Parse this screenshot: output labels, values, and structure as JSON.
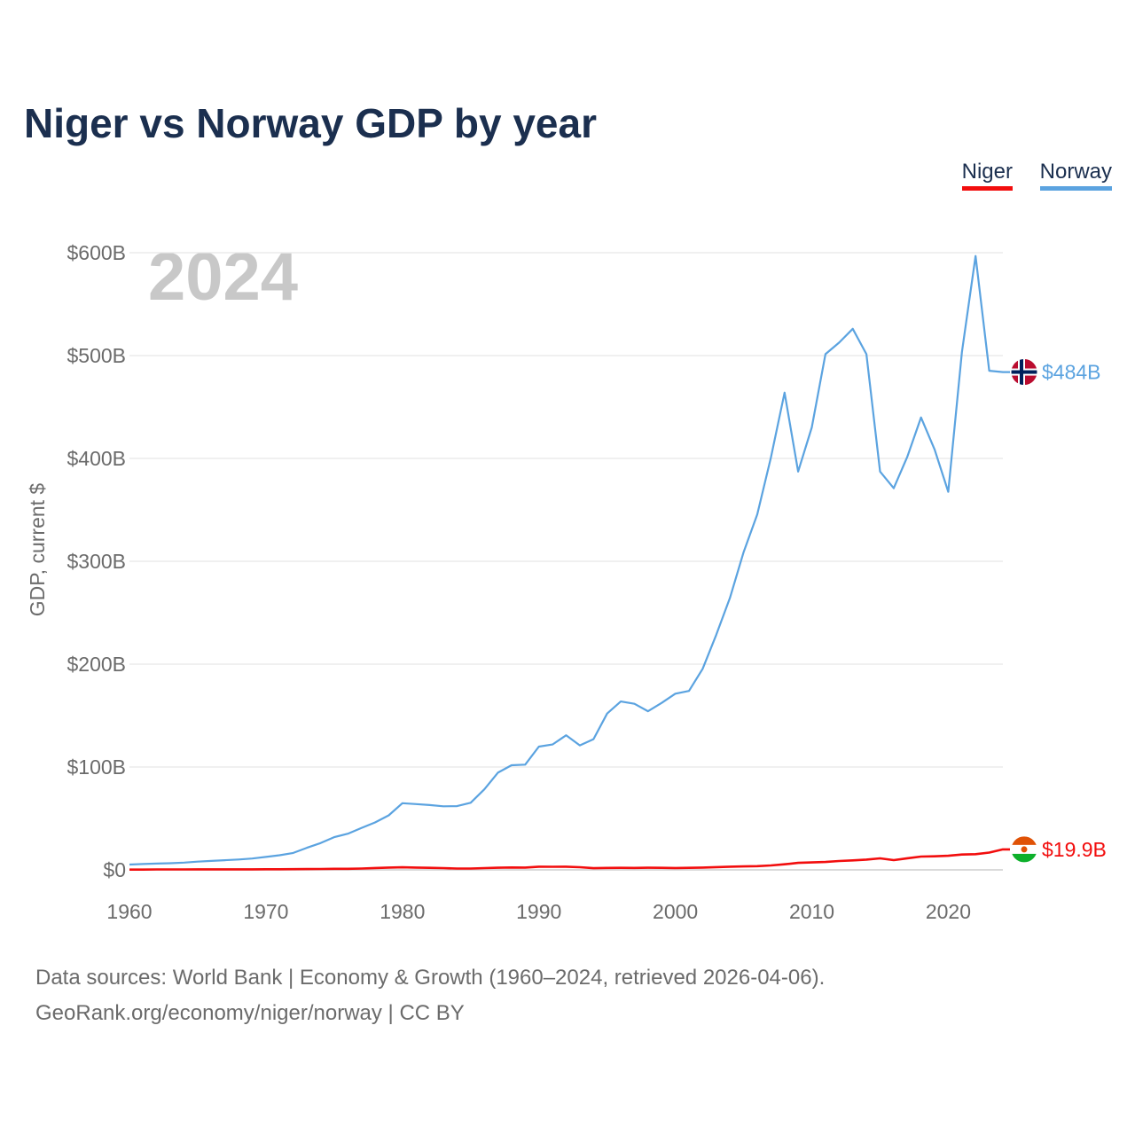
{
  "title": "Niger vs Norway GDP by year",
  "legend": [
    {
      "label": "Niger",
      "color": "#f20d0d"
    },
    {
      "label": "Norway",
      "color": "#5ba3e0"
    }
  ],
  "year_label": "2024",
  "source_line1": "Data sources: World Bank | Economy & Growth (1960–2024, retrieved 2026-04-06).",
  "source_line2": "GeoRank.org/economy/niger/norway | CC BY",
  "chart_data": {
    "type": "line",
    "title": "Niger vs Norway GDP by year",
    "ylabel": "GDP, current $",
    "xlabel": "",
    "xlim": [
      1960,
      2024
    ],
    "ylim": [
      0,
      600
    ],
    "y_unit": "billion USD",
    "y_ticks": [
      0,
      100,
      200,
      300,
      400,
      500,
      600
    ],
    "y_tick_labels": [
      "$0",
      "$100B",
      "$200B",
      "$300B",
      "$400B",
      "$500B",
      "$600B"
    ],
    "x_ticks": [
      1960,
      1970,
      1980,
      1990,
      2000,
      2010,
      2020
    ],
    "x_tick_labels": [
      "1960",
      "1970",
      "1980",
      "1990",
      "2000",
      "2010",
      "2020"
    ],
    "grid": true,
    "legend_position": "top-right",
    "years": [
      1960,
      1961,
      1962,
      1963,
      1964,
      1965,
      1966,
      1967,
      1968,
      1969,
      1970,
      1971,
      1972,
      1973,
      1974,
      1975,
      1976,
      1977,
      1978,
      1979,
      1980,
      1981,
      1982,
      1983,
      1984,
      1985,
      1986,
      1987,
      1988,
      1989,
      1990,
      1991,
      1992,
      1993,
      1994,
      1995,
      1996,
      1997,
      1998,
      1999,
      2000,
      2001,
      2002,
      2003,
      2004,
      2005,
      2006,
      2007,
      2008,
      2009,
      2010,
      2011,
      2012,
      2013,
      2014,
      2015,
      2016,
      2017,
      2018,
      2019,
      2020,
      2021,
      2022,
      2023,
      2024
    ],
    "series": [
      {
        "name": "Norway",
        "color": "#5ba3e0",
        "end_label": "$484B",
        "values": [
          5.2,
          5.7,
          6.1,
          6.5,
          7.1,
          8.0,
          8.7,
          9.4,
          10.1,
          11.0,
          12.6,
          14.2,
          16.5,
          21.5,
          26.0,
          31.8,
          35.2,
          40.8,
          46.1,
          53.0,
          64.8,
          64.0,
          63.0,
          61.8,
          62.0,
          65.3,
          78.3,
          94.5,
          101.7,
          102.3,
          119.8,
          121.9,
          130.9,
          121.0,
          127.1,
          152.0,
          163.7,
          161.5,
          154.2,
          162.3,
          171.3,
          174.0,
          195.4,
          228.6,
          264.4,
          308.9,
          345.6,
          400.9,
          464.0,
          387.2,
          430.2,
          501.4,
          512.6,
          526.0,
          501.4,
          387.2,
          371.0,
          401.8,
          439.8,
          408.7,
          367.6,
          503.4,
          596.8,
          485.3,
          484.0
        ]
      },
      {
        "name": "Niger",
        "color": "#f20d0d",
        "end_label": "$19.9B",
        "values": [
          0.3,
          0.3,
          0.4,
          0.4,
          0.4,
          0.5,
          0.5,
          0.5,
          0.5,
          0.5,
          0.6,
          0.6,
          0.7,
          0.8,
          0.9,
          1.0,
          1.0,
          1.3,
          1.8,
          2.2,
          2.5,
          2.2,
          2.0,
          1.7,
          1.3,
          1.3,
          1.7,
          2.1,
          2.3,
          2.2,
          3.1,
          3.0,
          3.1,
          2.6,
          1.6,
          1.9,
          2.0,
          1.9,
          2.1,
          2.0,
          1.8,
          2.0,
          2.2,
          2.7,
          3.1,
          3.4,
          3.6,
          4.3,
          5.4,
          6.8,
          7.2,
          7.7,
          8.6,
          9.2,
          10.0,
          11.2,
          9.5,
          11.3,
          12.9,
          13.2,
          13.7,
          14.9,
          15.3,
          16.8,
          19.9
        ]
      }
    ]
  }
}
